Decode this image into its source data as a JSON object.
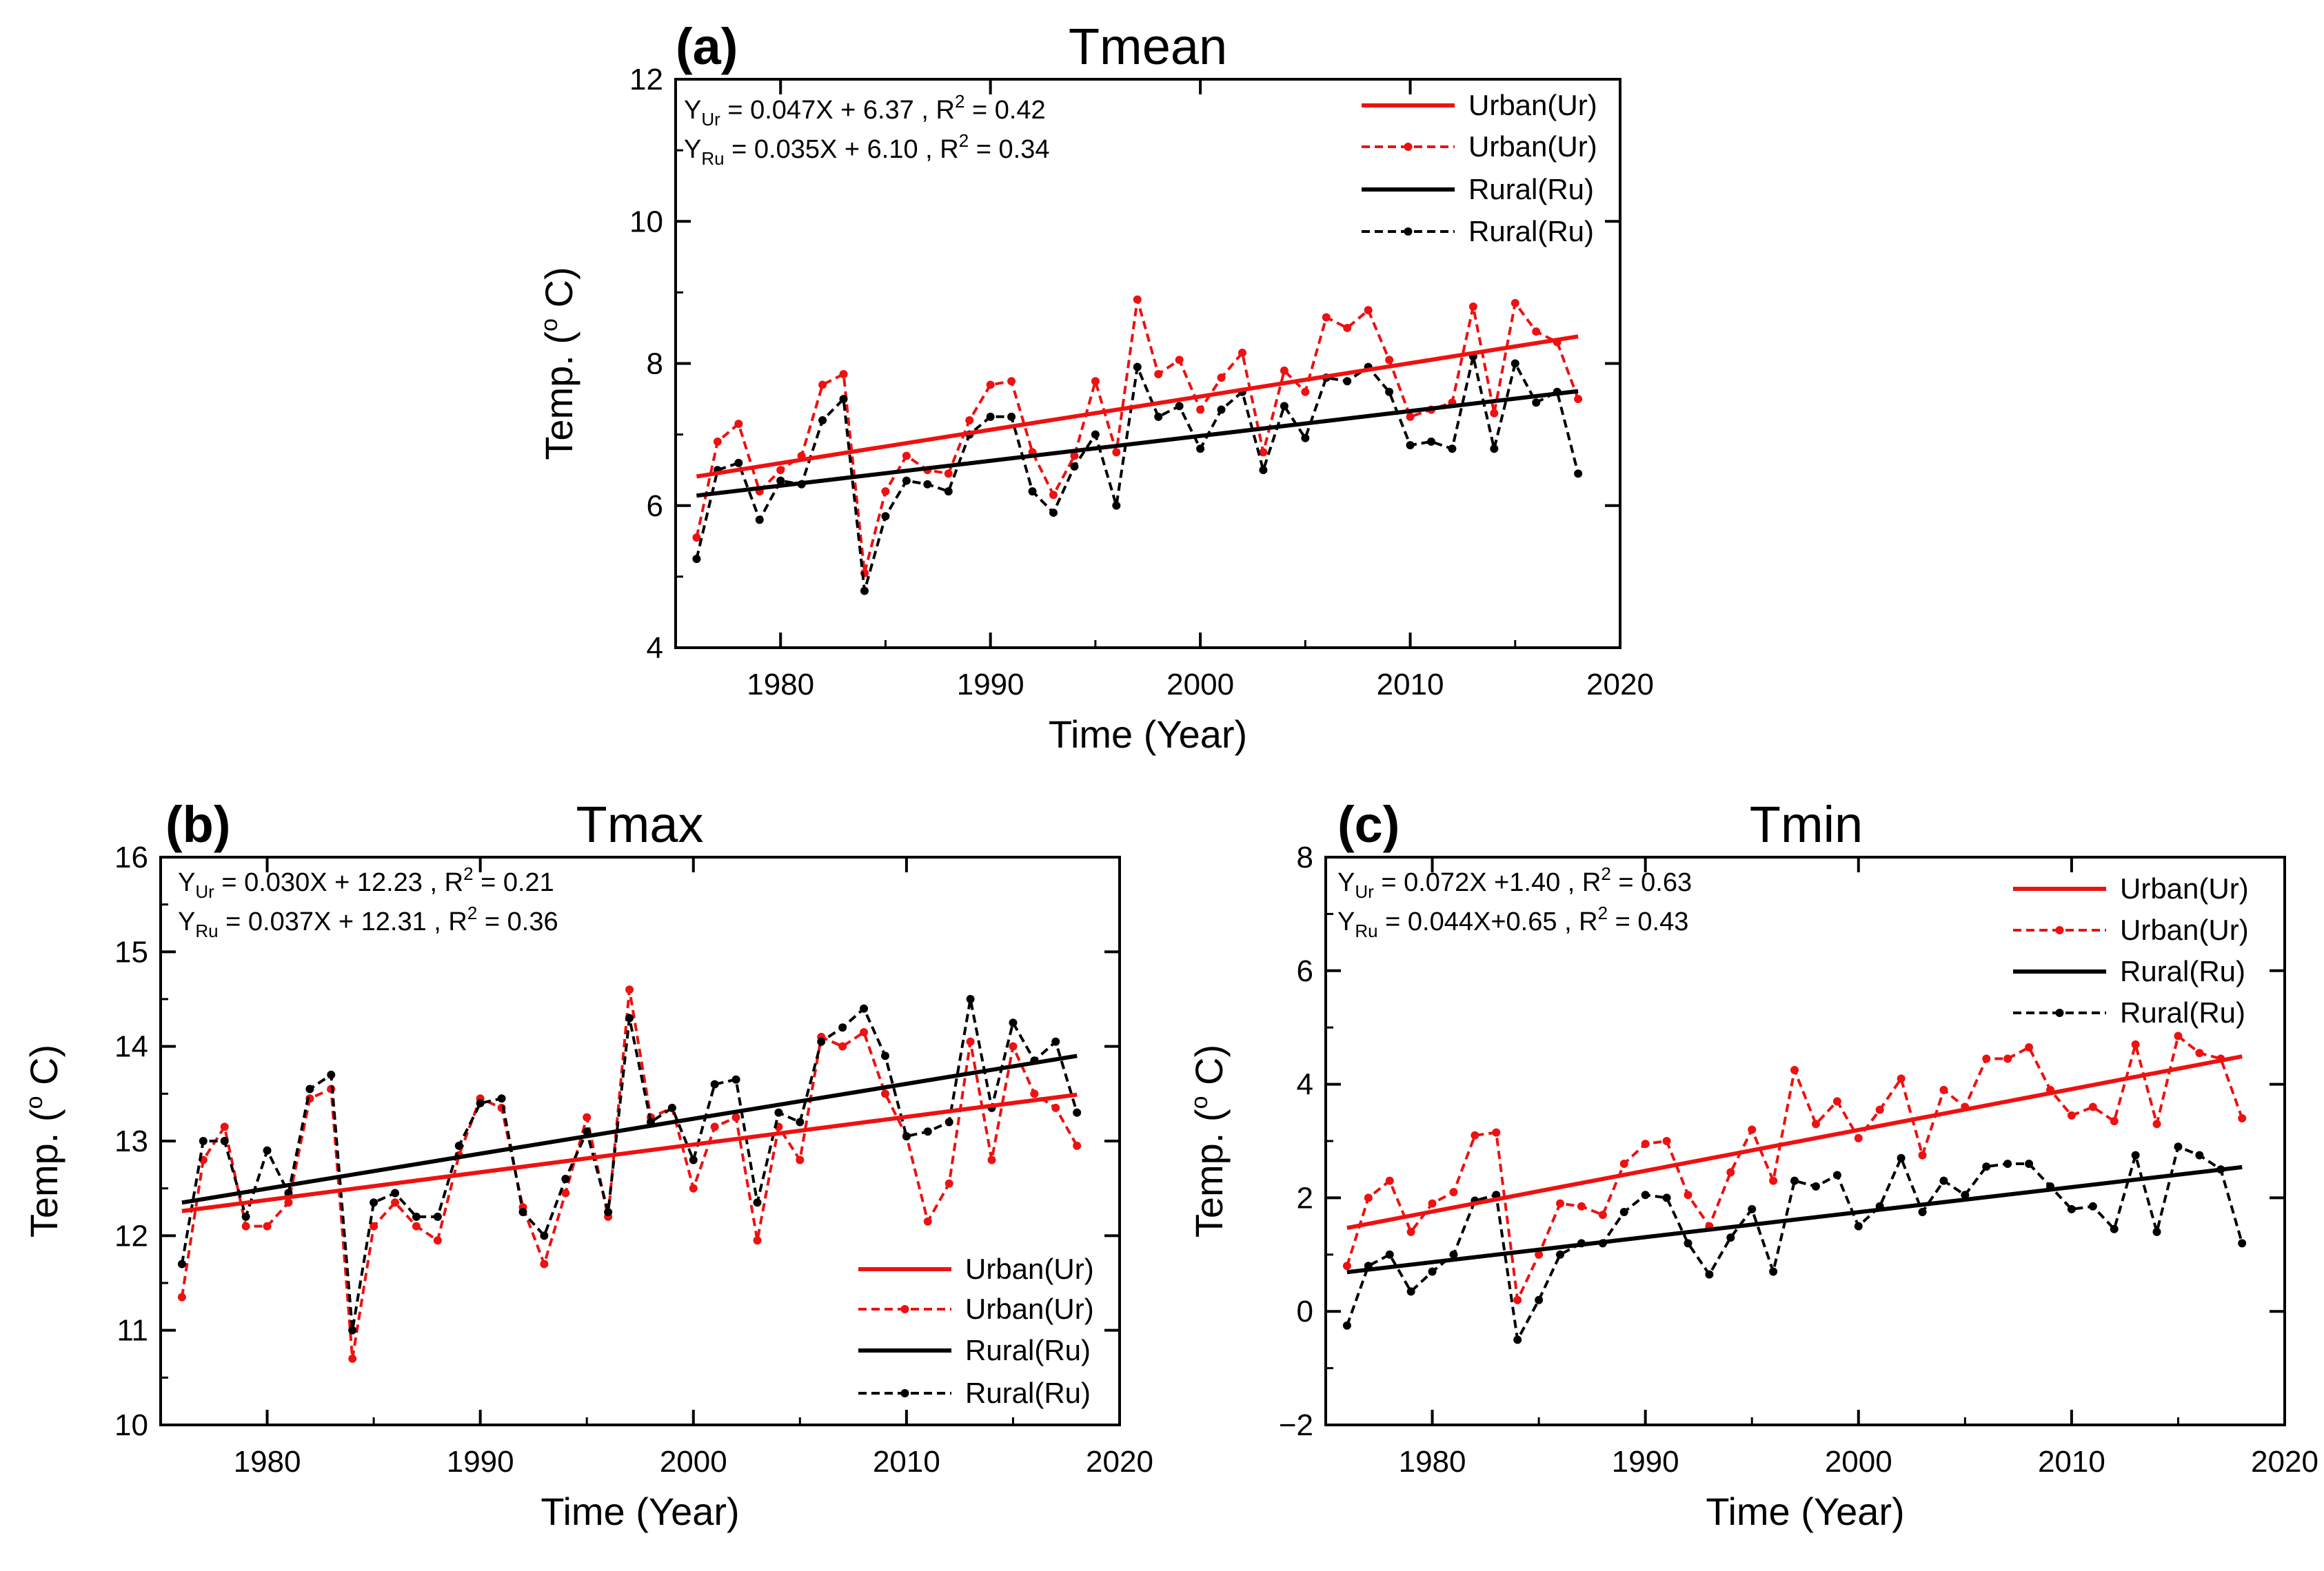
{
  "figure": {
    "colors": {
      "urban": "#ee1111",
      "rural": "#000000"
    },
    "line_styles": {
      "trend": "solid",
      "annual": "dashed-with-dots"
    }
  },
  "chart_data": [
    {
      "id": "a",
      "type": "line",
      "panel_label": "(a)",
      "title": "Tmean",
      "xlabel": "Time (Year)",
      "ylabel_text": "Temp. (",
      "ylabel_sup": "o",
      "ylabel_unit": " C)",
      "xlim": [
        1975,
        2020
      ],
      "ylim": [
        4,
        12
      ],
      "xticks": [
        1980,
        1990,
        2000,
        2010,
        2020
      ],
      "yticks": [
        4,
        6,
        8,
        10,
        12
      ],
      "legend_position": "top-right",
      "legend": [
        "Urban(Ur)",
        "Urban(Ur)",
        "Rural(Ru)",
        "Rural(Ru)"
      ],
      "equations": [
        {
          "y": "Y",
          "sub": "Ur",
          "rhs": " = 0.047X + 6.37 ,  R",
          "sup": "2",
          "r2": " = 0.42"
        },
        {
          "y": "Y",
          "sub": "Ru",
          "rhs": " = 0.035X + 6.10  , R",
          "sup": "2",
          "r2": " = 0.34"
        }
      ],
      "x": [
        1976,
        1977,
        1978,
        1979,
        1980,
        1981,
        1982,
        1983,
        1984,
        1985,
        1986,
        1987,
        1988,
        1989,
        1990,
        1991,
        1992,
        1993,
        1994,
        1995,
        1996,
        1997,
        1998,
        1999,
        2000,
        2001,
        2002,
        2003,
        2004,
        2005,
        2006,
        2007,
        2008,
        2009,
        2010,
        2011,
        2012,
        2013,
        2014,
        2015,
        2016,
        2017,
        2018
      ],
      "series": [
        {
          "name": "Urban(Ur)",
          "kind": "annual",
          "color": "#ee1111",
          "values": [
            5.55,
            6.9,
            7.15,
            6.2,
            6.5,
            6.7,
            7.7,
            7.85,
            5.05,
            6.2,
            6.7,
            6.5,
            6.45,
            7.2,
            7.7,
            7.75,
            6.75,
            6.15,
            6.7,
            7.75,
            6.75,
            8.9,
            7.85,
            8.05,
            7.35,
            7.8,
            8.15,
            6.75,
            7.9,
            7.6,
            8.65,
            8.5,
            8.75,
            8.05,
            7.25,
            7.35,
            7.45,
            8.8,
            7.3,
            8.85,
            8.45,
            8.3,
            7.5
          ]
        },
        {
          "name": "Rural(Ru)",
          "kind": "annual",
          "color": "#000000",
          "values": [
            5.25,
            6.5,
            6.6,
            5.8,
            6.35,
            6.3,
            7.2,
            7.5,
            4.8,
            5.85,
            6.35,
            6.3,
            6.2,
            7.0,
            7.25,
            7.25,
            6.2,
            5.9,
            6.55,
            7.0,
            6.0,
            7.95,
            7.25,
            7.4,
            6.8,
            7.35,
            7.6,
            6.5,
            7.4,
            6.95,
            7.8,
            7.75,
            7.95,
            7.6,
            6.85,
            6.9,
            6.8,
            8.1,
            6.8,
            8.0,
            7.45,
            7.6,
            6.45
          ]
        },
        {
          "name": "Urban(Ur)",
          "kind": "trend",
          "color": "#ee1111",
          "x": [
            1976,
            2018
          ],
          "values": [
            6.41,
            8.38
          ]
        },
        {
          "name": "Rural(Ru)",
          "kind": "trend",
          "color": "#000000",
          "x": [
            1976,
            2018
          ],
          "values": [
            6.14,
            7.61
          ]
        }
      ]
    },
    {
      "id": "b",
      "type": "line",
      "panel_label": "(b)",
      "title": "Tmax",
      "xlabel": "Time (Year)",
      "ylabel_text": "Temp. (",
      "ylabel_sup": "o",
      "ylabel_unit": " C)",
      "xlim": [
        1975,
        2020
      ],
      "ylim": [
        10,
        16
      ],
      "xticks": [
        1980,
        1990,
        2000,
        2010,
        2020
      ],
      "yticks": [
        10,
        11,
        12,
        13,
        14,
        15,
        16
      ],
      "legend_position": "bottom-right",
      "legend": [
        "Urban(Ur)",
        "Urban(Ur)",
        "Rural(Ru)",
        "Rural(Ru)"
      ],
      "equations": [
        {
          "y": "Y",
          "sub": "Ur",
          "rhs": " = 0.030X + 12.23 , R",
          "sup": "2",
          "r2": " = 0.21"
        },
        {
          "y": "Y",
          "sub": "Ru",
          "rhs": " = 0.037X + 12.31  , R",
          "sup": "2",
          "r2": " = 0.36"
        }
      ],
      "x": [
        1976,
        1977,
        1978,
        1979,
        1980,
        1981,
        1982,
        1983,
        1984,
        1985,
        1986,
        1987,
        1988,
        1989,
        1990,
        1991,
        1992,
        1993,
        1994,
        1995,
        1996,
        1997,
        1998,
        1999,
        2000,
        2001,
        2002,
        2003,
        2004,
        2005,
        2006,
        2007,
        2008,
        2009,
        2010,
        2011,
        2012,
        2013,
        2014,
        2015,
        2016,
        2017,
        2018
      ],
      "series": [
        {
          "name": "Urban(Ur)",
          "kind": "annual",
          "color": "#ee1111",
          "values": [
            11.35,
            12.8,
            13.15,
            12.1,
            12.1,
            12.35,
            13.45,
            13.55,
            10.7,
            12.1,
            12.35,
            12.1,
            11.95,
            12.85,
            13.45,
            13.35,
            12.3,
            11.7,
            12.45,
            13.25,
            12.2,
            14.6,
            13.25,
            13.35,
            12.5,
            13.15,
            13.25,
            11.95,
            13.15,
            12.8,
            14.1,
            14.0,
            14.15,
            13.5,
            13.05,
            12.15,
            12.55,
            14.05,
            12.8,
            14.0,
            13.5,
            13.35,
            12.95
          ]
        },
        {
          "name": "Rural(Ru)",
          "kind": "annual",
          "color": "#000000",
          "values": [
            11.7,
            13.0,
            13.0,
            12.2,
            12.9,
            12.45,
            13.55,
            13.7,
            11.0,
            12.35,
            12.45,
            12.2,
            12.2,
            12.95,
            13.4,
            13.45,
            12.25,
            12.0,
            12.6,
            13.1,
            12.25,
            14.3,
            13.2,
            13.35,
            12.8,
            13.6,
            13.65,
            12.35,
            13.3,
            13.2,
            14.05,
            14.2,
            14.4,
            13.9,
            13.05,
            13.1,
            13.2,
            14.5,
            13.35,
            14.25,
            13.85,
            14.05,
            13.3
          ]
        },
        {
          "name": "Urban(Ur)",
          "kind": "trend",
          "color": "#ee1111",
          "x": [
            1976,
            2018
          ],
          "values": [
            12.26,
            13.49
          ]
        },
        {
          "name": "Rural(Ru)",
          "kind": "trend",
          "color": "#000000",
          "x": [
            1976,
            2018
          ],
          "values": [
            12.35,
            13.9
          ]
        }
      ]
    },
    {
      "id": "c",
      "type": "line",
      "panel_label": "(c)",
      "title": "Tmin",
      "xlabel": "Time (Year)",
      "ylabel_text": "Temp. (",
      "ylabel_sup": "o",
      "ylabel_unit": " C)",
      "xlim": [
        1975,
        2020
      ],
      "ylim": [
        -2,
        8
      ],
      "xticks": [
        1980,
        1990,
        2000,
        2010,
        2020
      ],
      "yticks": [
        -2,
        0,
        2,
        4,
        6,
        8
      ],
      "ytick_labels": [
        "−2",
        "0",
        "2",
        "4",
        "6",
        "8"
      ],
      "legend_position": "top-right",
      "legend": [
        "Urban(Ur)",
        "Urban(Ur)",
        "Rural(Ru)",
        "Rural(Ru)"
      ],
      "equations": [
        {
          "y": "Y",
          "sub": "Ur",
          "rhs": " = 0.072X +1.40 , R",
          "sup": "2",
          "r2": " = 0.63"
        },
        {
          "y": "Y",
          "sub": "Ru",
          "rhs": " = 0.044X+0.65 , R",
          "sup": "2",
          "r2": " = 0.43"
        }
      ],
      "x": [
        1976,
        1977,
        1978,
        1979,
        1980,
        1981,
        1982,
        1983,
        1984,
        1985,
        1986,
        1987,
        1988,
        1989,
        1990,
        1991,
        1992,
        1993,
        1994,
        1995,
        1996,
        1997,
        1998,
        1999,
        2000,
        2001,
        2002,
        2003,
        2004,
        2005,
        2006,
        2007,
        2008,
        2009,
        2010,
        2011,
        2012,
        2013,
        2014,
        2015,
        2016,
        2017,
        2018
      ],
      "series": [
        {
          "name": "Urban(Ur)",
          "kind": "annual",
          "color": "#ee1111",
          "values": [
            0.8,
            2.0,
            2.3,
            1.4,
            1.9,
            2.1,
            3.1,
            3.15,
            0.2,
            1.0,
            1.9,
            1.85,
            1.7,
            2.6,
            2.95,
            3.0,
            2.05,
            1.5,
            2.45,
            3.2,
            2.3,
            4.25,
            3.3,
            3.7,
            3.05,
            3.55,
            4.1,
            2.75,
            3.9,
            3.6,
            4.45,
            4.45,
            4.65,
            3.9,
            3.45,
            3.6,
            3.35,
            4.7,
            3.3,
            4.85,
            4.55,
            4.45,
            3.4
          ]
        },
        {
          "name": "Rural(Ru)",
          "kind": "annual",
          "color": "#000000",
          "values": [
            -0.25,
            0.8,
            1.0,
            0.35,
            0.7,
            1.0,
            1.95,
            2.05,
            -0.5,
            0.2,
            1.0,
            1.2,
            1.2,
            1.75,
            2.05,
            2.0,
            1.2,
            0.65,
            1.3,
            1.8,
            0.7,
            2.3,
            2.2,
            2.4,
            1.5,
            1.85,
            2.7,
            1.75,
            2.3,
            2.05,
            2.55,
            2.6,
            2.6,
            2.2,
            1.8,
            1.85,
            1.45,
            2.75,
            1.4,
            2.9,
            2.75,
            2.5,
            1.2
          ]
        },
        {
          "name": "Urban(Ur)",
          "kind": "trend",
          "color": "#ee1111",
          "x": [
            1976,
            2018
          ],
          "values": [
            1.47,
            4.49
          ]
        },
        {
          "name": "Rural(Ru)",
          "kind": "trend",
          "color": "#000000",
          "x": [
            1976,
            2018
          ],
          "values": [
            0.69,
            2.54
          ]
        }
      ]
    }
  ]
}
